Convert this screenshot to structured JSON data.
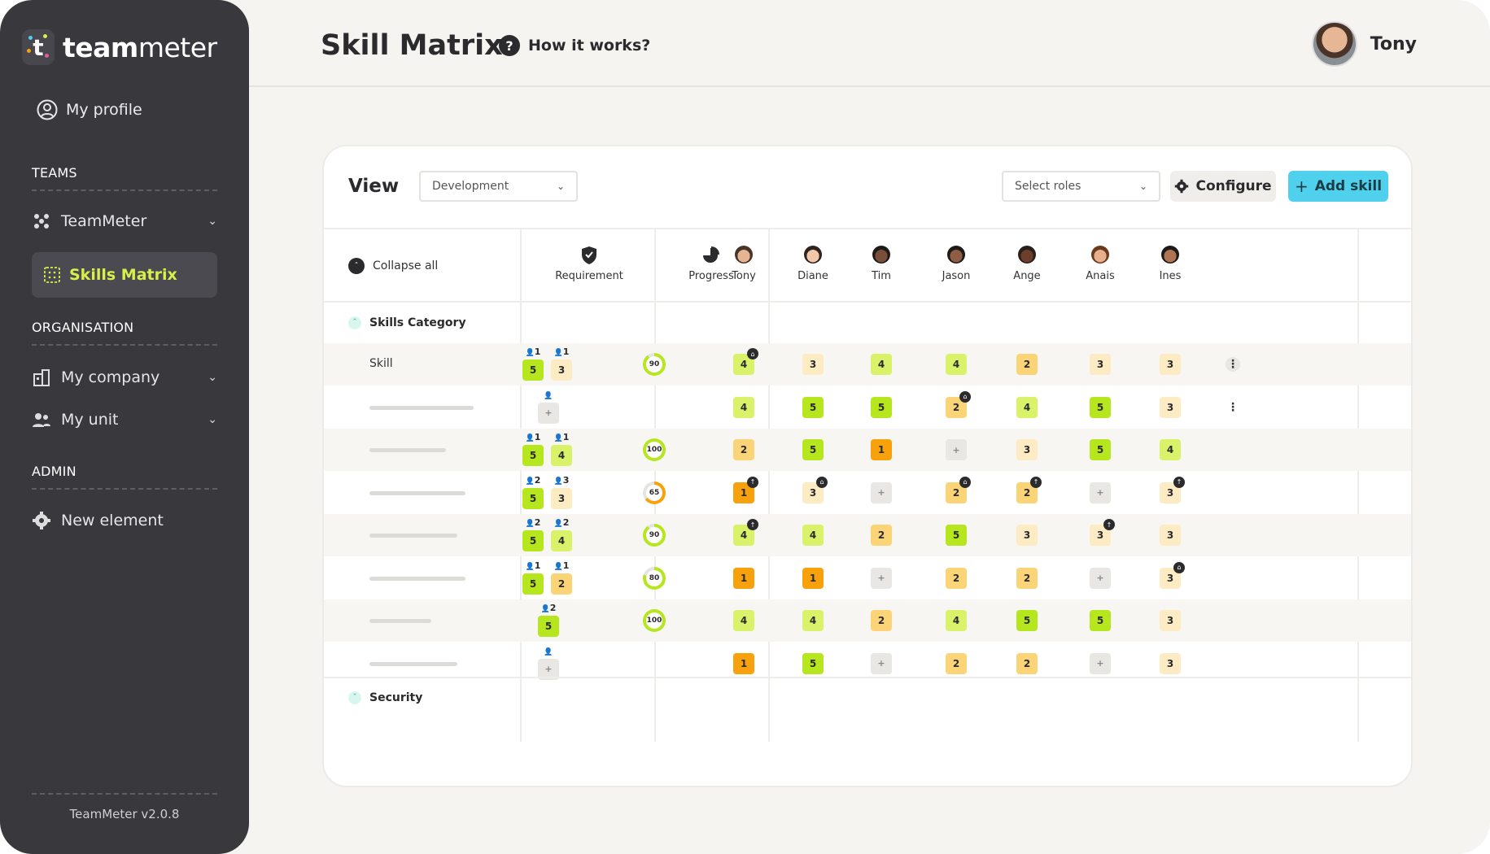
{
  "app": {
    "name_bold": "team",
    "name_light": "meter",
    "version": "TeamMeter v2.0.8"
  },
  "sidebar": {
    "profile": "My profile",
    "sections": {
      "teams": "TEAMS",
      "organisation": "ORGANISATION",
      "admin": "ADMIN"
    },
    "items": {
      "teammeter": "TeamMeter",
      "skills_matrix": "Skills Matrix",
      "my_company": "My company",
      "my_unit": "My unit",
      "new_element": "New element"
    }
  },
  "header": {
    "title": "Skill Matrix",
    "help": "How it works?",
    "user_name": "Tony"
  },
  "toolbar": {
    "view_label": "View",
    "view_select": "Development",
    "roles_select": "Select roles",
    "configure": "Configure",
    "add_skill": "Add skill"
  },
  "columns": {
    "collapse_all": "Collapse all",
    "requirement": "Requirement",
    "progress": "Progress",
    "members": [
      "Tony",
      "Diane",
      "Tim",
      "Jason",
      "Ange",
      "Anais",
      "Ines"
    ]
  },
  "categories": {
    "first": "Skills Category",
    "second": "Security"
  },
  "rows": [
    {
      "name": "Skill",
      "req": [
        {
          "n": "1",
          "lvl": 5
        },
        {
          "n": "1",
          "lvl": 3
        }
      ],
      "progress": 90,
      "levels": [
        4,
        3,
        4,
        4,
        2,
        3,
        3
      ],
      "badges": {
        "0": "cap"
      },
      "menu": true
    },
    {
      "name": "",
      "bar": 128,
      "req_single": {
        "n": "",
        "lvl": 0
      },
      "progress": null,
      "levels": [
        4,
        5,
        5,
        2,
        4,
        5,
        3
      ],
      "badges": {
        "3": "cap"
      },
      "menu": true
    },
    {
      "name": "",
      "bar": 94,
      "req": [
        {
          "n": "1",
          "lvl": 5
        },
        {
          "n": "1",
          "lvl": 4
        }
      ],
      "progress": 100,
      "levels": [
        2,
        5,
        1,
        0,
        3,
        5,
        4
      ],
      "badges": {}
    },
    {
      "name": "",
      "bar": 118,
      "req": [
        {
          "n": "2",
          "lvl": 5
        },
        {
          "n": "3",
          "lvl": 3
        }
      ],
      "progress": 65,
      "levels": [
        1,
        3,
        0,
        2,
        2,
        0,
        3
      ],
      "badges": {
        "0": "up",
        "1": "cap",
        "3": "cap",
        "4": "up",
        "6": "up"
      }
    },
    {
      "name": "",
      "bar": 108,
      "req": [
        {
          "n": "2",
          "lvl": 5
        },
        {
          "n": "2",
          "lvl": 4
        }
      ],
      "progress": 90,
      "levels": [
        4,
        4,
        2,
        5,
        3,
        3,
        3
      ],
      "badges": {
        "0": "up",
        "5": "up"
      }
    },
    {
      "name": "",
      "bar": 118,
      "req": [
        {
          "n": "1",
          "lvl": 5
        },
        {
          "n": "1",
          "lvl": 2
        }
      ],
      "progress": 80,
      "levels": [
        1,
        1,
        0,
        2,
        2,
        0,
        3
      ],
      "badges": {
        "6": "cap"
      }
    },
    {
      "name": "",
      "bar": 76,
      "req_single": {
        "n": "2",
        "lvl": 5
      },
      "progress": 100,
      "levels": [
        4,
        4,
        2,
        4,
        5,
        5,
        3
      ],
      "badges": {}
    },
    {
      "name": "",
      "bar": 108,
      "req_single": {
        "n": "",
        "lvl": 0
      },
      "progress": null,
      "levels": [
        1,
        5,
        0,
        2,
        2,
        0,
        3
      ],
      "badges": {}
    }
  ],
  "colors": {
    "accent": "#4fd0ec",
    "sidebar": "#38383d",
    "active": "#d9f04a",
    "lvl1": "#f7a20d",
    "lvl2": "#fbd477",
    "lvl3": "#fdebc3",
    "lvl4": "#d9f269",
    "lvl5": "#b5e61e"
  }
}
